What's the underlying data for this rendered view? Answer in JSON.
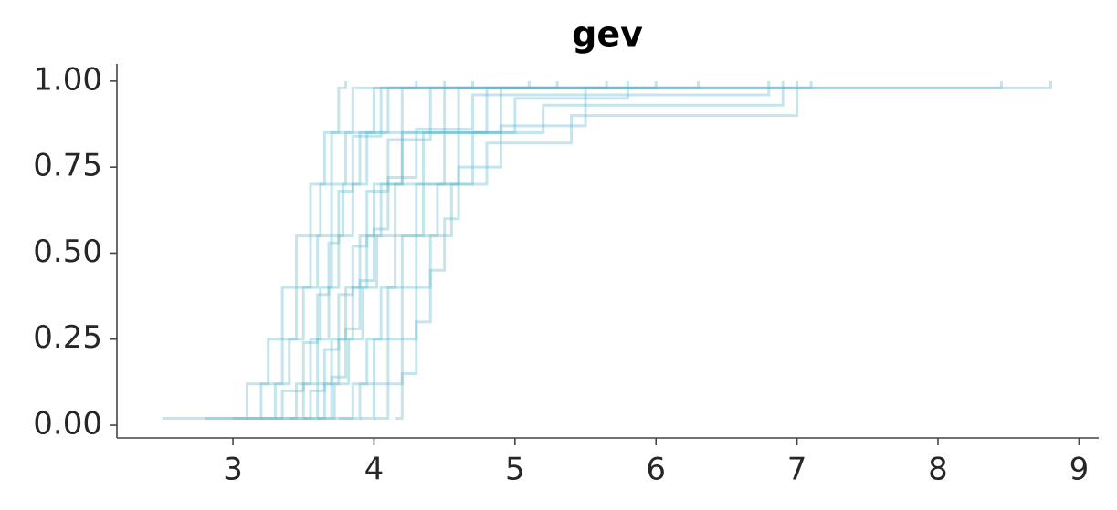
{
  "chart_data": {
    "type": "step",
    "title": "gev",
    "color": "#5ab4cc",
    "line_alpha": 0.35,
    "xlim": [
      2.177,
      9.14
    ],
    "ylim": [
      -0.037,
      1.05
    ],
    "xticks": [
      3,
      4,
      5,
      6,
      7,
      8,
      9
    ],
    "yticks": [
      {
        "value": 0,
        "label": "0.00"
      },
      {
        "value": 0.25,
        "label": "0.25"
      },
      {
        "value": 0.5,
        "label": "0.50"
      },
      {
        "value": 0.75,
        "label": "0.75"
      },
      {
        "value": 1,
        "label": "1.00"
      }
    ],
    "series": [
      {
        "x": [
          2.5,
          3.1,
          3.25,
          3.35,
          3.45,
          3.55,
          3.65,
          3.75,
          3.8
        ],
        "values": [
          0.02,
          0.12,
          0.25,
          0.4,
          0.55,
          0.7,
          0.85,
          0.98,
          1.0
        ]
      },
      {
        "x": [
          3.3,
          3.45,
          3.55,
          3.62,
          3.7,
          3.78,
          3.9,
          4.1,
          8.8
        ],
        "values": [
          0.02,
          0.12,
          0.25,
          0.4,
          0.55,
          0.7,
          0.85,
          0.98,
          1.0
        ]
      },
      {
        "x": [
          3.5,
          3.6,
          3.7,
          3.8,
          3.9,
          4.0,
          4.2,
          4.6,
          7.1
        ],
        "values": [
          0.02,
          0.12,
          0.25,
          0.4,
          0.55,
          0.7,
          0.85,
          0.98,
          1.0
        ]
      },
      {
        "x": [
          4.15,
          4.2,
          4.3,
          4.4,
          4.5,
          4.6,
          4.9,
          5.5,
          8.45
        ],
        "values": [
          0.02,
          0.15,
          0.3,
          0.45,
          0.6,
          0.75,
          0.87,
          0.98,
          1.0
        ]
      },
      {
        "x": [
          3.1,
          3.3,
          3.4,
          3.5,
          3.6,
          3.7,
          3.8,
          4.0,
          4.5
        ],
        "values": [
          0.02,
          0.12,
          0.25,
          0.4,
          0.55,
          0.7,
          0.85,
          0.98,
          1.0
        ]
      },
      {
        "x": [
          3.4,
          3.55,
          3.65,
          3.75,
          3.85,
          3.95,
          4.1,
          4.4,
          5.65
        ],
        "values": [
          0.02,
          0.1,
          0.22,
          0.38,
          0.52,
          0.68,
          0.83,
          0.98,
          1.0
        ]
      },
      {
        "x": [
          3.7,
          3.85,
          3.95,
          4.05,
          4.15,
          4.3,
          4.5,
          4.9,
          6.3
        ],
        "values": [
          0.02,
          0.12,
          0.25,
          0.4,
          0.55,
          0.7,
          0.85,
          0.98,
          1.0
        ]
      },
      {
        "x": [
          2.8,
          3.2,
          3.35,
          3.45,
          3.55,
          3.62,
          3.7,
          3.85,
          4.3
        ],
        "values": [
          0.02,
          0.12,
          0.25,
          0.4,
          0.55,
          0.7,
          0.85,
          0.98,
          1.0
        ]
      },
      {
        "x": [
          3.6,
          3.7,
          3.8,
          3.9,
          4.0,
          4.1,
          4.3,
          4.7,
          6.8
        ],
        "values": [
          0.02,
          0.14,
          0.28,
          0.42,
          0.57,
          0.72,
          0.86,
          0.96,
          1.0
        ]
      },
      {
        "x": [
          3.2,
          3.5,
          3.6,
          3.68,
          3.75,
          3.85,
          3.95,
          4.2,
          5.1
        ],
        "values": [
          0.02,
          0.12,
          0.25,
          0.4,
          0.55,
          0.7,
          0.85,
          0.98,
          1.0
        ]
      },
      {
        "x": [
          3.9,
          4.0,
          4.1,
          4.2,
          4.3,
          4.45,
          4.7,
          5.2,
          6.9
        ],
        "values": [
          0.02,
          0.12,
          0.25,
          0.4,
          0.55,
          0.7,
          0.85,
          0.93,
          1.0
        ]
      },
      {
        "x": [
          3.5,
          3.65,
          3.75,
          3.85,
          3.95,
          4.05,
          4.2,
          4.5,
          5.3
        ],
        "values": [
          0.02,
          0.12,
          0.25,
          0.4,
          0.55,
          0.7,
          0.85,
          0.98,
          1.0
        ]
      },
      {
        "x": [
          3.0,
          3.35,
          3.5,
          3.6,
          3.68,
          3.75,
          3.85,
          4.05,
          4.7
        ],
        "values": [
          0.02,
          0.1,
          0.24,
          0.38,
          0.53,
          0.68,
          0.84,
          0.98,
          1.0
        ]
      },
      {
        "x": [
          3.75,
          3.9,
          4.0,
          4.1,
          4.2,
          4.35,
          4.6,
          5.0,
          5.8
        ],
        "values": [
          0.02,
          0.12,
          0.25,
          0.4,
          0.55,
          0.7,
          0.85,
          0.95,
          1.0
        ]
      },
      {
        "x": [
          4.0,
          4.1,
          4.2,
          4.3,
          4.4,
          4.55,
          4.8,
          5.4,
          7.0
        ],
        "values": [
          0.02,
          0.12,
          0.25,
          0.4,
          0.55,
          0.7,
          0.82,
          0.9,
          1.0
        ]
      },
      {
        "x": [
          3.6,
          3.72,
          3.82,
          3.92,
          4.02,
          4.15,
          4.35,
          4.8,
          6.0
        ],
        "values": [
          0.02,
          0.12,
          0.25,
          0.4,
          0.55,
          0.7,
          0.85,
          0.98,
          1.0
        ]
      }
    ]
  }
}
